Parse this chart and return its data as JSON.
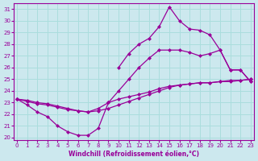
{
  "xlabel": "Windchill (Refroidissement éolien,°C)",
  "bg_color": "#cce8ee",
  "line_color": "#990099",
  "grid_color": "#aadddd",
  "ylim": [
    19.8,
    31.5
  ],
  "xlim": [
    -0.3,
    23.3
  ],
  "yticks": [
    20,
    21,
    22,
    23,
    24,
    25,
    26,
    27,
    28,
    29,
    30,
    31
  ],
  "xticks": [
    0,
    1,
    2,
    3,
    4,
    5,
    6,
    7,
    8,
    9,
    10,
    11,
    12,
    13,
    14,
    15,
    16,
    17,
    18,
    19,
    20,
    21,
    22,
    23
  ],
  "line1_x": [
    0,
    1,
    2,
    3,
    4,
    5,
    6,
    7,
    8,
    9,
    10,
    11,
    12,
    13,
    14,
    15,
    16,
    17,
    18,
    19,
    20,
    21,
    22,
    23
  ],
  "line1_y": [
    23.3,
    22.8,
    22.2,
    21.8,
    21.0,
    20.5,
    20.2,
    20.2,
    20.8,
    23.0,
    23.3,
    23.5,
    23.7,
    23.9,
    24.2,
    24.4,
    24.5,
    24.6,
    24.7,
    24.7,
    24.8,
    24.8,
    24.9,
    25.0
  ],
  "line2_x": [
    0,
    1,
    2,
    3,
    4,
    5,
    6,
    7,
    8,
    9,
    10,
    11,
    12,
    13,
    14,
    15,
    16,
    17,
    18,
    19,
    20,
    21,
    22,
    23
  ],
  "line2_y": [
    23.3,
    23.1,
    22.9,
    22.8,
    22.6,
    22.4,
    22.3,
    22.2,
    22.3,
    22.5,
    22.8,
    23.1,
    23.4,
    23.7,
    24.0,
    24.3,
    24.5,
    24.6,
    24.7,
    24.7,
    24.8,
    24.9,
    24.9,
    25.0
  ],
  "line3_x": [
    0,
    1,
    2,
    3,
    4,
    5,
    6,
    7,
    8,
    9,
    10,
    11,
    12,
    13,
    14,
    15,
    16,
    17,
    18,
    19,
    20,
    21,
    22,
    23
  ],
  "line3_y": [
    23.3,
    23.2,
    23.0,
    22.9,
    22.7,
    22.5,
    22.3,
    22.2,
    22.5,
    23.0,
    24.0,
    25.0,
    26.0,
    26.8,
    27.5,
    27.5,
    27.5,
    27.3,
    27.0,
    27.2,
    27.5,
    25.8,
    25.8,
    24.8
  ],
  "line4_x": [
    0,
    1,
    2,
    3,
    4,
    5,
    6,
    7,
    8,
    9,
    10,
    11,
    12,
    13,
    14,
    15,
    16,
    17,
    18,
    19,
    20,
    21,
    22,
    23
  ],
  "line4_y": [
    23.3,
    null,
    null,
    null,
    null,
    null,
    null,
    null,
    null,
    null,
    26.0,
    27.2,
    28.0,
    28.5,
    29.5,
    31.2,
    30.0,
    29.3,
    29.2,
    28.8,
    27.5,
    25.8,
    25.8,
    24.8
  ]
}
